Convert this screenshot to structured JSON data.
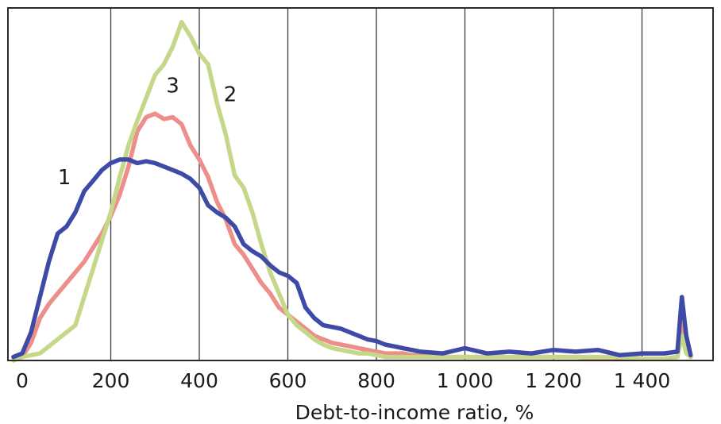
{
  "chart_data": {
    "type": "line",
    "title": "",
    "xlabel": "Debt-to-income ratio, %",
    "ylabel": "",
    "xlim": [
      -20,
      1545
    ],
    "ylim": [
      0,
      1.0
    ],
    "x_ticks": [
      0,
      200,
      400,
      600,
      800,
      1000,
      1200,
      1400
    ],
    "x_tick_labels": [
      "0",
      "200",
      "400",
      "600",
      "800",
      "1 000",
      "1 200",
      "1 400"
    ],
    "grid": "vertical",
    "legend": "none",
    "series": [
      {
        "name": "1",
        "color": "#3d4ba6",
        "label_at": [
          95,
          0.5
        ],
        "x": [
          -20,
          0,
          20,
          40,
          60,
          80,
          100,
          120,
          140,
          160,
          180,
          200,
          220,
          240,
          260,
          280,
          300,
          320,
          340,
          360,
          380,
          400,
          420,
          440,
          460,
          480,
          500,
          520,
          540,
          560,
          580,
          600,
          620,
          640,
          660,
          680,
          700,
          720,
          740,
          760,
          780,
          800,
          820,
          840,
          860,
          880,
          900,
          950,
          1000,
          1050,
          1100,
          1150,
          1200,
          1250,
          1300,
          1350,
          1400,
          1450,
          1480,
          1490,
          1500,
          1510
        ],
        "y": [
          0.01,
          0.02,
          0.08,
          0.18,
          0.28,
          0.36,
          0.38,
          0.42,
          0.48,
          0.51,
          0.54,
          0.56,
          0.57,
          0.57,
          0.56,
          0.565,
          0.56,
          0.55,
          0.54,
          0.53,
          0.515,
          0.49,
          0.44,
          0.42,
          0.405,
          0.38,
          0.33,
          0.31,
          0.295,
          0.27,
          0.25,
          0.24,
          0.22,
          0.15,
          0.12,
          0.1,
          0.095,
          0.09,
          0.08,
          0.07,
          0.06,
          0.055,
          0.045,
          0.04,
          0.035,
          0.03,
          0.025,
          0.02,
          0.035,
          0.02,
          0.025,
          0.02,
          0.03,
          0.025,
          0.03,
          0.015,
          0.02,
          0.02,
          0.025,
          0.18,
          0.07,
          0.015
        ]
      },
      {
        "name": "2",
        "color": "#c5d88a",
        "label_at": [
          470,
          0.735
        ],
        "x": [
          -20,
          0,
          20,
          40,
          60,
          80,
          100,
          120,
          140,
          160,
          180,
          200,
          220,
          240,
          260,
          280,
          300,
          320,
          340,
          360,
          380,
          400,
          420,
          440,
          460,
          480,
          500,
          520,
          540,
          560,
          580,
          600,
          620,
          640,
          660,
          680,
          700,
          720,
          740,
          760,
          780,
          800,
          820,
          840,
          860,
          880,
          900,
          950,
          1000,
          1050,
          1100,
          1150,
          1200,
          1250,
          1300,
          1350,
          1400,
          1450,
          1480,
          1490,
          1500,
          1510
        ],
        "y": [
          0.0,
          0.01,
          0.015,
          0.02,
          0.04,
          0.06,
          0.08,
          0.1,
          0.18,
          0.26,
          0.34,
          0.42,
          0.52,
          0.61,
          0.68,
          0.745,
          0.81,
          0.84,
          0.89,
          0.96,
          0.92,
          0.87,
          0.84,
          0.73,
          0.64,
          0.525,
          0.49,
          0.42,
          0.33,
          0.25,
          0.19,
          0.13,
          0.1,
          0.08,
          0.06,
          0.045,
          0.035,
          0.03,
          0.025,
          0.02,
          0.02,
          0.015,
          0.01,
          0.01,
          0.01,
          0.01,
          0.01,
          0.01,
          0.01,
          0.01,
          0.01,
          0.01,
          0.01,
          0.01,
          0.01,
          0.01,
          0.005,
          0.005,
          0.01,
          0.07,
          0.02,
          0.01
        ]
      },
      {
        "name": "3",
        "color": "#ec8e8a",
        "label_at": [
          340,
          0.76
        ],
        "x": [
          -20,
          0,
          20,
          40,
          60,
          80,
          100,
          120,
          140,
          160,
          180,
          200,
          220,
          240,
          260,
          280,
          300,
          320,
          340,
          360,
          380,
          400,
          420,
          440,
          460,
          480,
          500,
          520,
          540,
          560,
          580,
          600,
          620,
          640,
          660,
          680,
          700,
          720,
          740,
          760,
          780,
          800,
          820,
          840,
          860,
          880,
          900,
          950,
          1000,
          1050,
          1100,
          1150,
          1200,
          1250,
          1300,
          1350,
          1400,
          1450,
          1480,
          1490,
          1500,
          1510
        ],
        "y": [
          0.0,
          0.01,
          0.05,
          0.12,
          0.16,
          0.19,
          0.22,
          0.25,
          0.28,
          0.32,
          0.36,
          0.41,
          0.47,
          0.55,
          0.65,
          0.69,
          0.7,
          0.685,
          0.69,
          0.67,
          0.61,
          0.57,
          0.52,
          0.45,
          0.4,
          0.33,
          0.3,
          0.26,
          0.22,
          0.19,
          0.15,
          0.13,
          0.11,
          0.09,
          0.07,
          0.06,
          0.05,
          0.045,
          0.04,
          0.035,
          0.03,
          0.025,
          0.02,
          0.02,
          0.02,
          0.015,
          0.015,
          0.01,
          0.01,
          0.01,
          0.01,
          0.01,
          0.01,
          0.01,
          0.005,
          0.005,
          0.005,
          0.005,
          0.01,
          0.11,
          0.04,
          0.01
        ]
      }
    ]
  }
}
